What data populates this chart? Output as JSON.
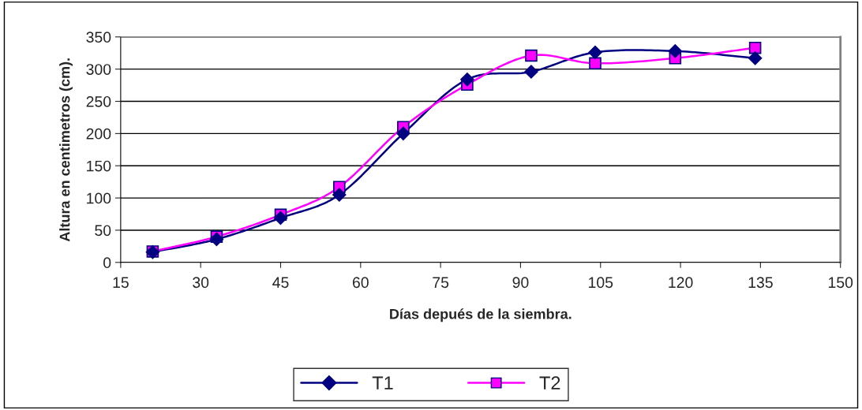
{
  "chart_data": {
    "type": "line",
    "xlabel": "Días depués de la siembra.",
    "ylabel": "Altura en centimetros (cm).",
    "x": [
      21,
      33,
      45,
      56,
      68,
      80,
      92,
      104,
      119,
      134
    ],
    "series": [
      {
        "name": "T1",
        "color": "#000080",
        "marker": "diamond",
        "values": [
          16,
          36,
          69,
          105,
          200,
          284,
          296,
          326,
          328,
          317
        ]
      },
      {
        "name": "T2",
        "color": "#ff00ff",
        "marker": "square",
        "values": [
          17,
          40,
          74,
          117,
          210,
          276,
          321,
          309,
          317,
          333
        ]
      }
    ],
    "xlim": [
      15,
      150
    ],
    "xticks": [
      15,
      30,
      45,
      60,
      75,
      90,
      105,
      120,
      135,
      150
    ],
    "ylim": [
      0,
      350
    ],
    "yticks": [
      0,
      50,
      100,
      150,
      200,
      250,
      300,
      350
    ],
    "grid": "y",
    "legend": "bottom"
  }
}
